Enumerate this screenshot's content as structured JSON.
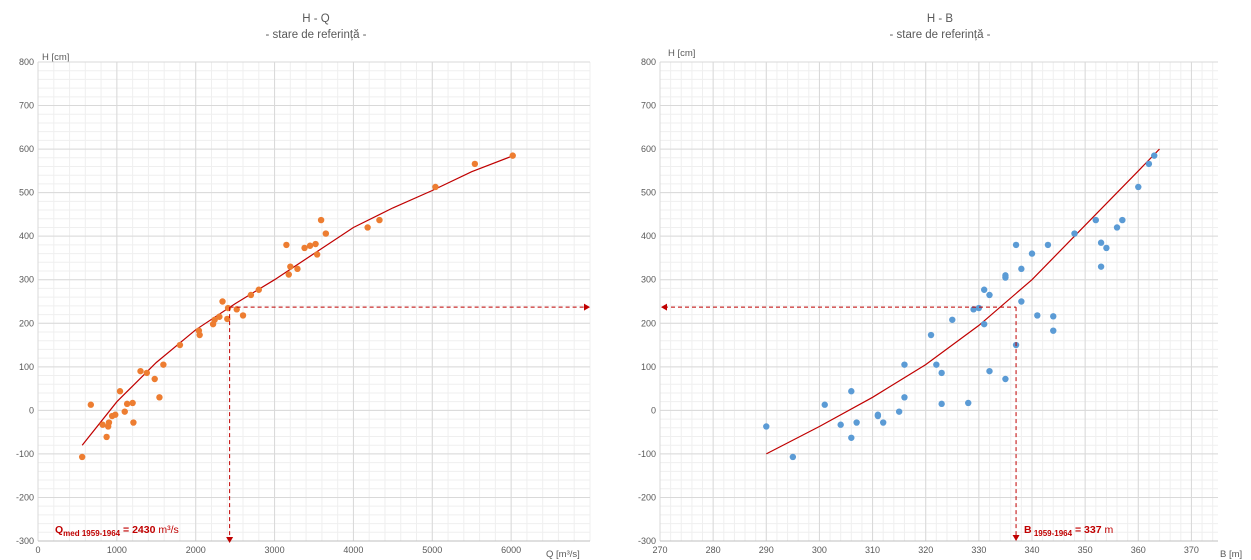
{
  "chart_data": [
    {
      "type": "scatter",
      "title": "H - Q",
      "subtitle": "- stare de referință -",
      "xlabel": "Q [m³/s]",
      "ylabel": "H [cm]",
      "xlim": [
        0,
        7000
      ],
      "ylim": [
        -300,
        800
      ],
      "xticks": [
        0,
        1000,
        2000,
        3000,
        4000,
        5000,
        6000
      ],
      "yticks": [
        -300,
        -200,
        -100,
        0,
        100,
        200,
        300,
        400,
        500,
        600,
        700,
        800
      ],
      "grid": true,
      "point_color": "#ed7d31",
      "trend_color": "#c00000",
      "points": [
        [
          560,
          -107
        ],
        [
          670,
          13
        ],
        [
          820,
          -33
        ],
        [
          870,
          -61
        ],
        [
          890,
          -37
        ],
        [
          900,
          -28
        ],
        [
          940,
          -13
        ],
        [
          980,
          -10
        ],
        [
          1040,
          44
        ],
        [
          1100,
          -3
        ],
        [
          1130,
          15
        ],
        [
          1200,
          17
        ],
        [
          1210,
          -28
        ],
        [
          1300,
          90
        ],
        [
          1380,
          86
        ],
        [
          1480,
          72
        ],
        [
          1540,
          30
        ],
        [
          1590,
          105
        ],
        [
          1800,
          150
        ],
        [
          2040,
          183
        ],
        [
          2050,
          173
        ],
        [
          2220,
          198
        ],
        [
          2240,
          208
        ],
        [
          2300,
          215
        ],
        [
          2340,
          250
        ],
        [
          2400,
          210
        ],
        [
          2410,
          235
        ],
        [
          2520,
          232
        ],
        [
          2600,
          218
        ],
        [
          2700,
          265
        ],
        [
          2800,
          277
        ],
        [
          3150,
          380
        ],
        [
          3180,
          312
        ],
        [
          3200,
          330
        ],
        [
          3290,
          325
        ],
        [
          3380,
          373
        ],
        [
          3450,
          378
        ],
        [
          3520,
          382
        ],
        [
          3540,
          358
        ],
        [
          3590,
          437
        ],
        [
          3650,
          406
        ],
        [
          4180,
          420
        ],
        [
          4330,
          437
        ],
        [
          5040,
          513
        ],
        [
          5540,
          566
        ],
        [
          6020,
          585
        ]
      ],
      "trendline": [
        [
          560,
          -80
        ],
        [
          1000,
          20
        ],
        [
          1500,
          110
        ],
        [
          2000,
          185
        ],
        [
          2500,
          245
        ],
        [
          3000,
          300
        ],
        [
          3500,
          360
        ],
        [
          4000,
          420
        ],
        [
          4500,
          465
        ],
        [
          5000,
          505
        ],
        [
          5500,
          548
        ],
        [
          6000,
          583
        ]
      ],
      "annotation": {
        "value": 2430,
        "h": 237,
        "label_prefix": "Q",
        "label_sub": "med 1959-1964",
        "label_eq": " = ",
        "label_value": "2430",
        "label_unit": " m³/s"
      }
    },
    {
      "type": "scatter",
      "title": "H - B",
      "subtitle": "- stare de referință -",
      "xlabel": "B [m]",
      "ylabel": "H [cm]",
      "xlim": [
        270,
        375
      ],
      "ylim": [
        -300,
        800
      ],
      "xticks": [
        270,
        280,
        290,
        300,
        310,
        320,
        330,
        340,
        350,
        360,
        370
      ],
      "yticks": [
        -300,
        -200,
        -100,
        0,
        100,
        200,
        300,
        400,
        500,
        600,
        700,
        800
      ],
      "grid": true,
      "point_color": "#5b9bd5",
      "trend_color": "#c00000",
      "points": [
        [
          290,
          -37
        ],
        [
          295,
          -107
        ],
        [
          301,
          13
        ],
        [
          304,
          -33
        ],
        [
          306,
          -63
        ],
        [
          306,
          44
        ],
        [
          307,
          -28
        ],
        [
          311,
          -13
        ],
        [
          311,
          -10
        ],
        [
          312,
          -28
        ],
        [
          315,
          -3
        ],
        [
          316,
          30
        ],
        [
          316,
          105
        ],
        [
          321,
          173
        ],
        [
          322,
          105
        ],
        [
          323,
          86
        ],
        [
          323,
          15
        ],
        [
          325,
          208
        ],
        [
          328,
          17
        ],
        [
          329,
          232
        ],
        [
          330,
          235
        ],
        [
          331,
          198
        ],
        [
          331,
          277
        ],
        [
          332,
          90
        ],
        [
          332,
          265
        ],
        [
          335,
          305
        ],
        [
          335,
          310
        ],
        [
          335,
          72
        ],
        [
          337,
          150
        ],
        [
          337,
          380
        ],
        [
          338,
          250
        ],
        [
          338,
          325
        ],
        [
          340,
          360
        ],
        [
          341,
          218
        ],
        [
          343,
          380
        ],
        [
          344,
          216
        ],
        [
          344,
          183
        ],
        [
          348,
          406
        ],
        [
          352,
          437
        ],
        [
          353,
          385
        ],
        [
          353,
          330
        ],
        [
          354,
          373
        ],
        [
          356,
          420
        ],
        [
          357,
          437
        ],
        [
          360,
          513
        ],
        [
          362,
          566
        ],
        [
          363,
          585
        ]
      ],
      "trendline": [
        [
          290,
          -100
        ],
        [
          300,
          -37
        ],
        [
          310,
          30
        ],
        [
          320,
          105
        ],
        [
          330,
          195
        ],
        [
          340,
          300
        ],
        [
          350,
          425
        ],
        [
          360,
          550
        ],
        [
          364,
          600
        ]
      ],
      "annotation": {
        "value": 337,
        "h": 237,
        "label_prefix": "B",
        "label_sub": " 1959-1964",
        "label_eq": " = ",
        "label_value": "337",
        "label_unit": " m"
      }
    }
  ]
}
